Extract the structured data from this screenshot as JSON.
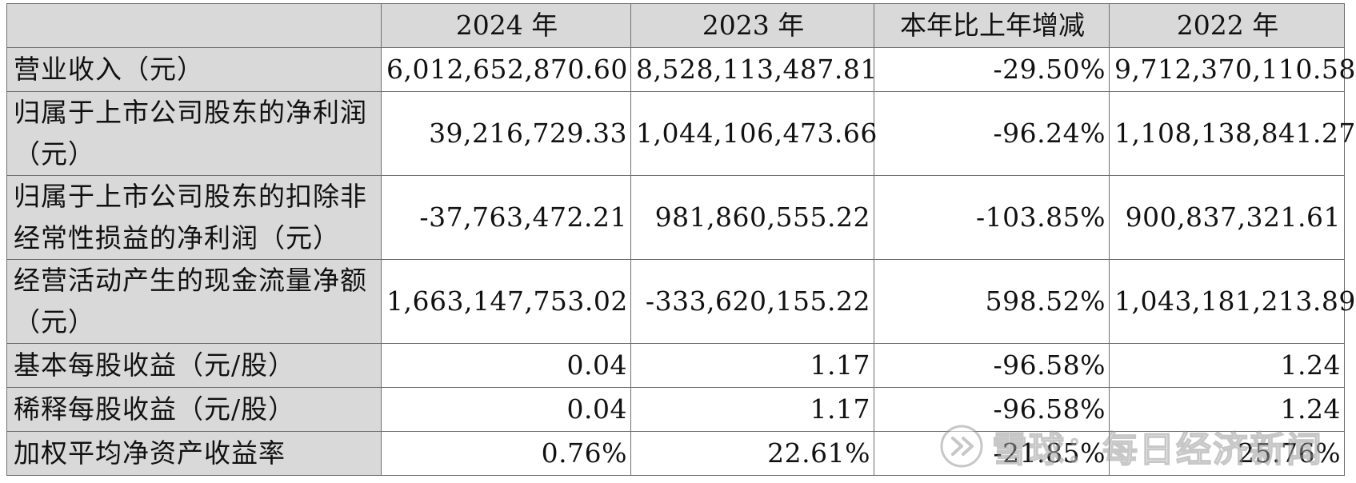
{
  "table": {
    "headers": [
      "",
      "2024 年",
      "2023 年",
      "本年比上年增减",
      "2022 年"
    ],
    "rows": [
      {
        "label": "营业收入（元）",
        "values": [
          "6,012,652,870.60",
          "8,528,113,487.81",
          "-29.50%",
          "9,712,370,110.58"
        ]
      },
      {
        "label": "归属于上市公司股东的净利润（元）",
        "values": [
          "39,216,729.33",
          "1,044,106,473.66",
          "-96.24%",
          "1,108,138,841.27"
        ]
      },
      {
        "label": "归属于上市公司股东的扣除非经常性损益的净利润（元）",
        "values": [
          "-37,763,472.21",
          "981,860,555.22",
          "-103.85%",
          "900,837,321.61"
        ]
      },
      {
        "label": "经营活动产生的现金流量净额（元）",
        "values": [
          "1,663,147,753.02",
          "-333,620,155.22",
          "598.52%",
          "1,043,181,213.89"
        ]
      },
      {
        "label": "基本每股收益（元/股）",
        "values": [
          "0.04",
          "1.17",
          "-96.58%",
          "1.24"
        ]
      },
      {
        "label": "稀释每股收益（元/股）",
        "values": [
          "0.04",
          "1.17",
          "-96.58%",
          "1.24"
        ]
      },
      {
        "label": "加权平均净资产收益率",
        "values": [
          "0.76%",
          "22.61%",
          "-21.85%",
          "25.76%"
        ]
      }
    ]
  },
  "watermark": {
    "text": "雪球：每日经济新闻",
    "icon": "snowball-logo-icon",
    "color": "#9a9a9a"
  },
  "colors": {
    "header_bg": "#d9d9d9",
    "label_bg": "#d9d9d9",
    "border": "#6f6f6f"
  }
}
